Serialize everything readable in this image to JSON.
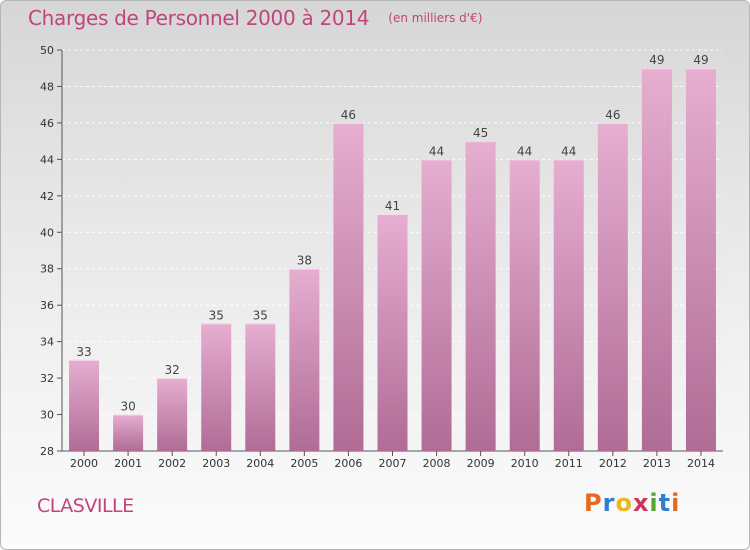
{
  "header": {
    "title": "Charges de Personnel 2000 à 2014",
    "unit_note": "(en milliers d'€)"
  },
  "footer": {
    "place_name": "CLASVILLE",
    "logo_letters": [
      "P",
      "r",
      "o",
      "x",
      "i",
      "t",
      "i"
    ]
  },
  "colors": {
    "title": "#c0457c",
    "bar_top": "#e6aed0",
    "bar_bottom": "#b06c95",
    "logo": [
      "#e56a20",
      "#2f7fcf",
      "#e8b81e",
      "#d4325a",
      "#5aa532",
      "#2f7fcf",
      "#e56a20"
    ]
  },
  "chart_data": {
    "type": "bar",
    "title": "Charges de Personnel 2000 à 2014",
    "subtitle": "(en milliers d'€)",
    "categories": [
      "2000",
      "2001",
      "2002",
      "2003",
      "2004",
      "2005",
      "2006",
      "2007",
      "2008",
      "2009",
      "2010",
      "2011",
      "2012",
      "2013",
      "2014"
    ],
    "values": [
      33,
      30,
      32,
      35,
      35,
      38,
      46,
      41,
      44,
      45,
      44,
      44,
      46,
      49,
      49
    ],
    "ylim": [
      28,
      50
    ],
    "yticks": [
      28,
      30,
      32,
      34,
      36,
      38,
      40,
      42,
      44,
      46,
      48,
      50
    ],
    "grid": true,
    "legend": "none"
  }
}
